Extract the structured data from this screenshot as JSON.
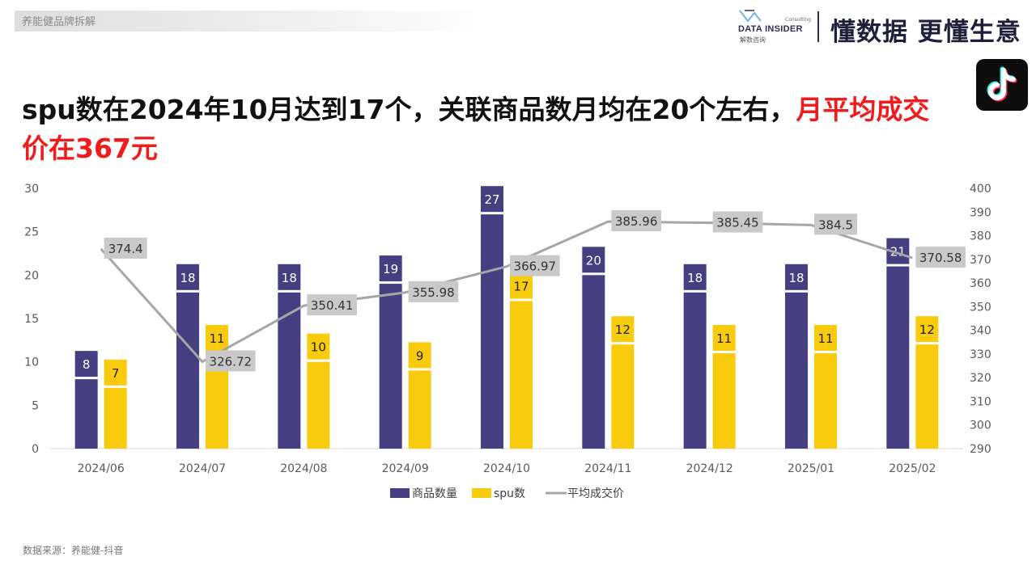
{
  "header": {
    "breadcrumb": "养能健品牌拆解",
    "brand_name": "DATA INSIDER",
    "brand_sub": "解数咨询",
    "brand_consult": "Consulting",
    "slogan": "懂数据 更懂生意"
  },
  "headline": {
    "main": "spu数在2024年10月达到17个，关联商品数月均在20个左右，",
    "highlight": "月平均成交价在367元",
    "highlight_color": "#ee1c1c"
  },
  "source": "数据来源：养能健-抖音",
  "app_icon": "tiktok-icon",
  "chart_data": {
    "type": "bar",
    "categories": [
      "2024/06",
      "2024/07",
      "2024/08",
      "2024/09",
      "2024/10",
      "2024/11",
      "2024/12",
      "2025/01",
      "2025/02"
    ],
    "series": [
      {
        "name": "商品数量",
        "type": "bar",
        "axis": "left",
        "color": "#453f82",
        "values": [
          8,
          18,
          18,
          19,
          27,
          20,
          18,
          18,
          21
        ]
      },
      {
        "name": "spu数",
        "type": "bar",
        "axis": "left",
        "color": "#f8cc0c",
        "values": [
          7,
          11,
          10,
          9,
          17,
          12,
          11,
          11,
          12
        ]
      },
      {
        "name": "平均成交价",
        "type": "line",
        "axis": "right",
        "color": "#a6a6a6",
        "values": [
          374.4,
          326.72,
          350.41,
          355.98,
          366.97,
          385.96,
          385.45,
          384.5,
          370.58
        ],
        "labels": [
          "374.4",
          "326.72",
          "350.41",
          "355.98",
          "366.97",
          "385.96",
          "385.45",
          "384.5",
          "370.58"
        ]
      }
    ],
    "ylim": [
      0,
      30
    ],
    "yticks": [
      "0",
      "5",
      "10",
      "15",
      "20",
      "25",
      "30"
    ],
    "y2lim": [
      290,
      400
    ],
    "y2ticks": [
      "290",
      "300",
      "310",
      "320",
      "330",
      "340",
      "350",
      "360",
      "370",
      "380",
      "390",
      "400"
    ],
    "grid": false,
    "legend_position": "bottom"
  }
}
